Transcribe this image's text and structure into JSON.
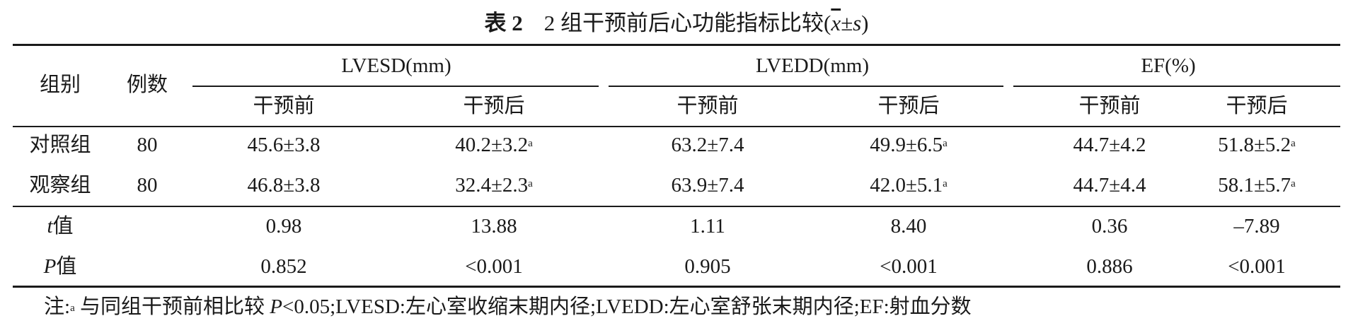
{
  "title": {
    "table_label": "表 2",
    "text": "2 组干预前后心功能指标比较(",
    "stat_x": "x",
    "stat_rest": "±s",
    "close": ")"
  },
  "headers": {
    "group": "组别",
    "count": "例数",
    "lvesd": "LVESD(mm)",
    "lvedd": "LVEDD(mm)",
    "ef": "EF(%)",
    "before": "干预前",
    "after": "干预后"
  },
  "rows": [
    {
      "group": "对照组",
      "count": "80",
      "lvesd_before": "45.6±3.8",
      "lvesd_after": "40.2±3.2",
      "lvedd_before": "63.2±7.4",
      "lvedd_after": "49.9±6.5",
      "ef_before": "44.7±4.2",
      "ef_after": "51.8±5.2",
      "mark": "a"
    },
    {
      "group": "观察组",
      "count": "80",
      "lvesd_before": "46.8±3.8",
      "lvesd_after": "32.4±2.3",
      "lvedd_before": "63.9±7.4",
      "lvedd_after": "42.0±5.1",
      "ef_before": "44.7±4.4",
      "ef_after": "58.1±5.7",
      "mark": "a"
    }
  ],
  "stats": [
    {
      "sym": "t",
      "label": "值",
      "lvesd_before": "0.98",
      "lvesd_after": "13.88",
      "lvedd_before": "1.11",
      "lvedd_after": "8.40",
      "ef_before": "0.36",
      "ef_after": "–7.89"
    },
    {
      "sym": "P",
      "label": "值",
      "lvesd_before": "0.852",
      "lvesd_after": "<0.001",
      "lvedd_before": "0.905",
      "lvedd_after": "<0.001",
      "ef_before": "0.886",
      "ef_after": "<0.001"
    }
  ],
  "note": {
    "prefix": "注:",
    "mark": "a",
    "text1": " 与同组干预前相比较 ",
    "p": "P",
    "text2": "<0.05;LVESD:左心室收缩末期内径;LVEDD:左心室舒张末期内径;EF:射血分数"
  }
}
